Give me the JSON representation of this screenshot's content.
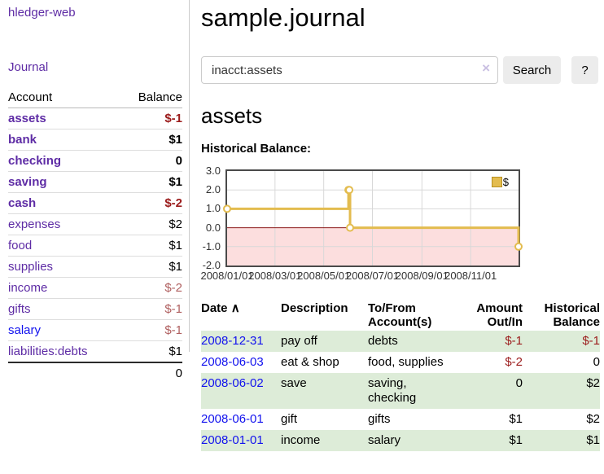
{
  "app": {
    "brand": "hledger-web",
    "accent_purple": "#5e2ca5",
    "link_blue": "#1212ee"
  },
  "sidebar": {
    "journal_link": "Journal",
    "accounts_table": {
      "headers": {
        "account": "Account",
        "balance": "Balance"
      },
      "rows": [
        {
          "name": "assets",
          "balance": "$-1",
          "depth": 1,
          "bold": true,
          "balance_style": "neg-strong",
          "link_style": "purple"
        },
        {
          "name": "bank",
          "balance": "$1",
          "depth": 2,
          "bold": true,
          "balance_style": "pos",
          "link_style": "purple"
        },
        {
          "name": "checking",
          "balance": "0",
          "depth": 3,
          "bold": true,
          "balance_style": "pos",
          "link_style": "purple"
        },
        {
          "name": "saving",
          "balance": "$1",
          "depth": 3,
          "bold": true,
          "balance_style": "pos",
          "link_style": "purple"
        },
        {
          "name": "cash",
          "balance": "$-2",
          "depth": 2,
          "bold": true,
          "balance_style": "neg-strong",
          "link_style": "purple"
        },
        {
          "name": "expenses",
          "balance": "$2",
          "depth": 1,
          "bold": false,
          "balance_style": "pos",
          "link_style": "purple"
        },
        {
          "name": "food",
          "balance": "$1",
          "depth": 2,
          "bold": false,
          "balance_style": "pos",
          "link_style": "purple"
        },
        {
          "name": "supplies",
          "balance": "$1",
          "depth": 2,
          "bold": false,
          "balance_style": "pos",
          "link_style": "purple"
        },
        {
          "name": "income",
          "balance": "$-2",
          "depth": 1,
          "bold": false,
          "balance_style": "neg-soft",
          "link_style": "purple"
        },
        {
          "name": "gifts",
          "balance": "$-1",
          "depth": 2,
          "bold": false,
          "balance_style": "neg-soft",
          "link_style": "purple"
        },
        {
          "name": "salary",
          "balance": "$-1",
          "depth": 2,
          "bold": false,
          "balance_style": "neg-soft",
          "link_style": "blue"
        },
        {
          "name": "liabilities:debts",
          "balance": "$1",
          "depth": 1,
          "bold": false,
          "balance_style": "pos",
          "link_style": "purple"
        }
      ],
      "total": "0"
    }
  },
  "main": {
    "title": "sample.journal",
    "search": {
      "value": "inacct:assets",
      "clear_icon": "×",
      "search_button": "Search",
      "help_button": "?"
    },
    "account_heading": "assets",
    "chart_title": "Historical Balance:"
  },
  "chart_data": {
    "type": "line",
    "interpolation": "step-after",
    "title": "Historical Balance",
    "series": [
      {
        "name": "$",
        "color": "#e3bc4f",
        "points": [
          [
            "2008-01-01",
            1
          ],
          [
            "2008-06-01",
            2
          ],
          [
            "2008-06-02",
            2
          ],
          [
            "2008-06-03",
            0
          ],
          [
            "2008-12-31",
            -1
          ]
        ]
      }
    ],
    "x_range": [
      "2008-01-01",
      "2008-12-31"
    ],
    "ylim": [
      -2,
      3
    ],
    "y_ticks": [
      "3.0",
      "2.0",
      "1.0",
      "0.0",
      "-1.0",
      "-2.0"
    ],
    "x_ticks": [
      "2008/01/01",
      "2008/03/01",
      "2008/05/01",
      "2008/07/01",
      "2008/09/01",
      "2008/11/01"
    ],
    "legend": {
      "label": "$",
      "position": "top-right"
    },
    "grid": true,
    "colors": {
      "marker_fill": "#ffffff",
      "negative_region": "#fcdede",
      "zero_line": "#8b1a1a",
      "gridline": "#d8d8d8",
      "plot_border": "#4a4a4a",
      "legend_swatch_border": "#b8901f"
    }
  },
  "register": {
    "headers": {
      "date": "Date",
      "sort_indicator": "∧",
      "description": "Description",
      "accounts": "To/From Account(s)",
      "amount": "Amount Out/In",
      "balance": "Historical Balance"
    },
    "rows": [
      {
        "date": "2008-12-31",
        "description": "pay off",
        "accounts": "debts",
        "amount": "$-1",
        "amount_negative": true,
        "balance": "$-1",
        "balance_negative": true
      },
      {
        "date": "2008-06-03",
        "description": "eat & shop",
        "accounts": "food, supplies",
        "amount": "$-2",
        "amount_negative": true,
        "balance": "0",
        "balance_negative": false
      },
      {
        "date": "2008-06-02",
        "description": "save",
        "accounts": "saving, checking",
        "amount": "0",
        "amount_negative": false,
        "balance": "$2",
        "balance_negative": false
      },
      {
        "date": "2008-06-01",
        "description": "gift",
        "accounts": "gifts",
        "amount": "$1",
        "amount_negative": false,
        "balance": "$2",
        "balance_negative": false
      },
      {
        "date": "2008-01-01",
        "description": "income",
        "accounts": "salary",
        "amount": "$1",
        "amount_negative": false,
        "balance": "$1",
        "balance_negative": false
      }
    ]
  }
}
